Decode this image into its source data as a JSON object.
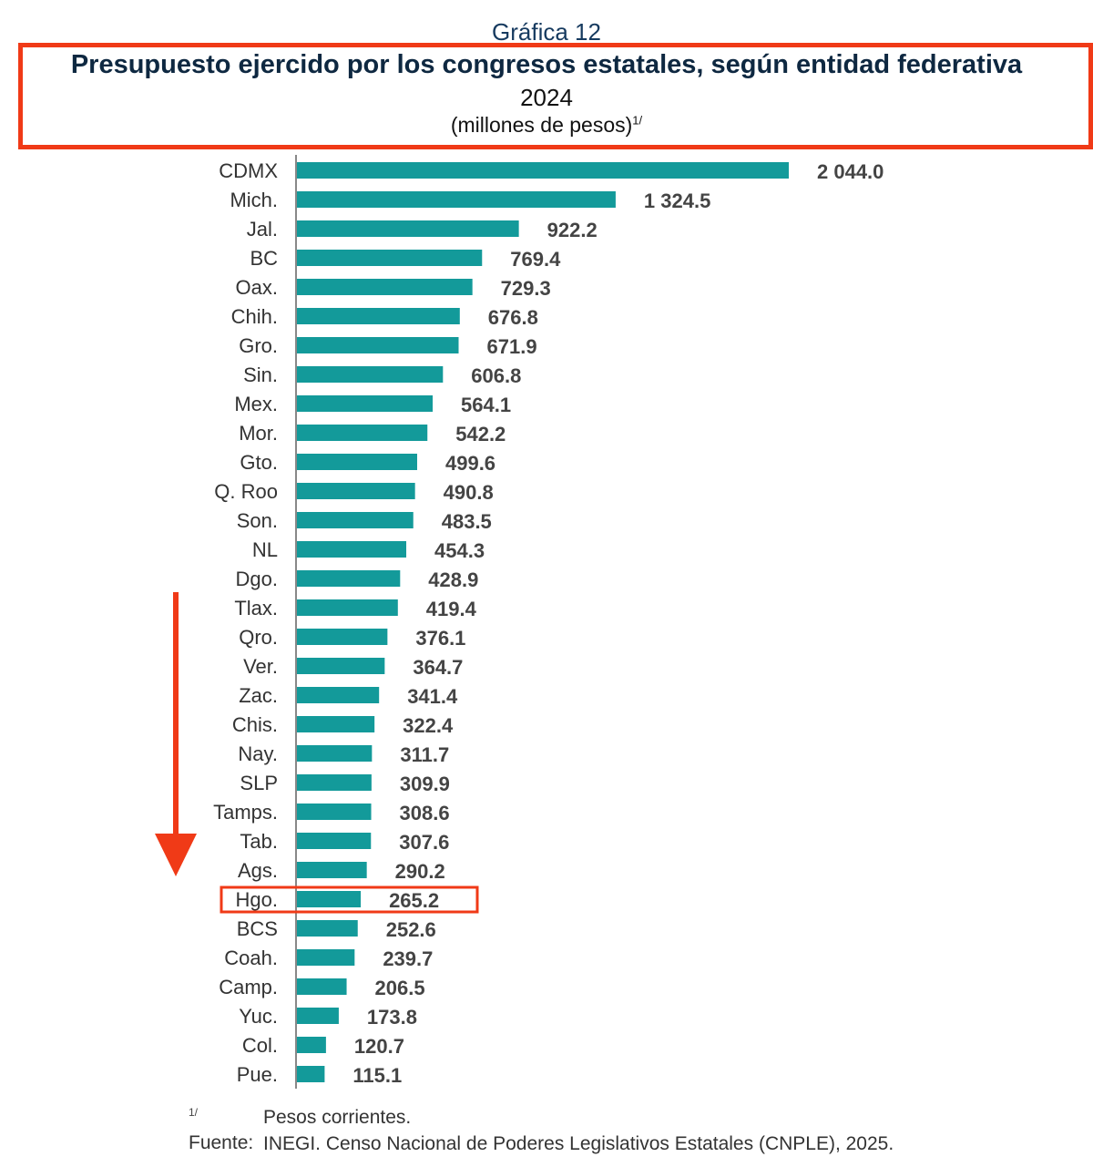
{
  "chart_data": {
    "type": "bar",
    "orientation": "horizontal",
    "label": "Gráfica 12",
    "title": "Presupuesto ejercido por los congresos estatales, según entidad federativa",
    "subtitle": "2024",
    "units": "(millones de pesos)",
    "units_note": "1/",
    "categories": [
      "CDMX",
      "Mich.",
      "Jal.",
      "BC",
      "Oax.",
      "Chih.",
      "Gro.",
      "Sin.",
      "Mex.",
      "Mor.",
      "Gto.",
      "Q. Roo",
      "Son.",
      "NL",
      "Dgo.",
      "Tlax.",
      "Qro.",
      "Ver.",
      "Zac.",
      "Chis.",
      "Nay.",
      "SLP",
      "Tamps.",
      "Tab.",
      "Ags.",
      "Hgo.",
      "BCS",
      "Coah.",
      "Camp.",
      "Yuc.",
      "Col.",
      "Pue."
    ],
    "values": [
      2044.0,
      1324.5,
      922.2,
      769.4,
      729.3,
      676.8,
      671.9,
      606.8,
      564.1,
      542.2,
      499.6,
      490.8,
      483.5,
      454.3,
      428.9,
      419.4,
      376.1,
      364.7,
      341.4,
      322.4,
      311.7,
      309.9,
      308.6,
      307.6,
      290.2,
      265.2,
      252.6,
      239.7,
      206.5,
      173.8,
      120.7,
      115.1
    ],
    "value_labels": [
      "2 044.0",
      "1 324.5",
      "922.2",
      "769.4",
      "729.3",
      "676.8",
      "671.9",
      "606.8",
      "564.1",
      "542.2",
      "499.6",
      "490.8",
      "483.5",
      "454.3",
      "428.9",
      "419.4",
      "376.1",
      "364.7",
      "341.4",
      "322.4",
      "311.7",
      "309.9",
      "308.6",
      "307.6",
      "290.2",
      "265.2",
      "252.6",
      "239.7",
      "206.5",
      "173.8",
      "120.7",
      "115.1"
    ],
    "xlim": [
      0,
      2044
    ],
    "grid": false,
    "highlighted_category": "Hgo.",
    "bar_color": "#139a9a",
    "annotation_color": "#f03a17"
  },
  "footnotes": {
    "note_mark": "1/",
    "note_text": "Pesos corrientes.",
    "source_label": "Fuente:",
    "source_text": "INEGI. Censo Nacional de Poderes Legislativos Estatales (CNPLE), 2025."
  }
}
